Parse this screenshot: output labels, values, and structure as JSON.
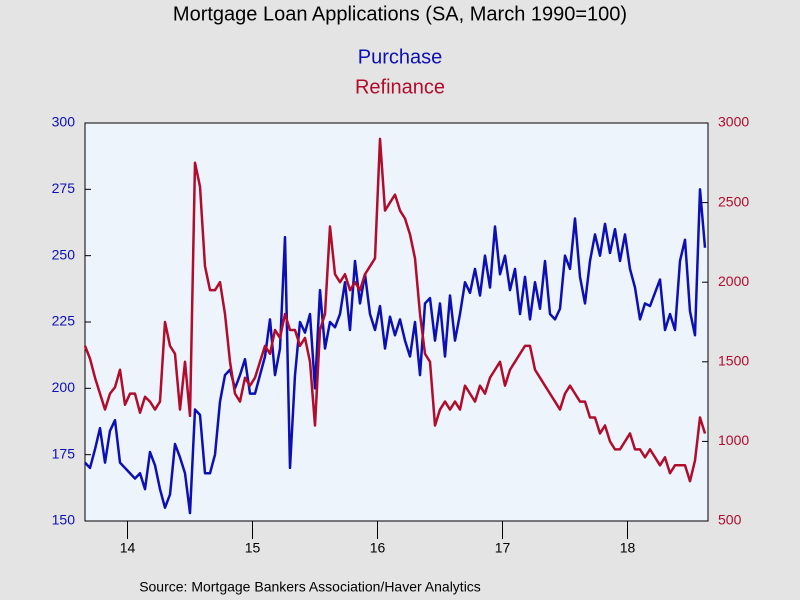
{
  "chart_data": {
    "type": "line",
    "title": "Mortgage Loan Applications (SA, March 1990=100)",
    "source": "Source:  Mortgage Bankers Association/Haver Analytics",
    "background": "#eef4fc",
    "x": [
      2014.16,
      2014.2,
      2014.24,
      2014.28,
      2014.32,
      2014.36,
      2014.4,
      2014.44,
      2014.48,
      2014.52,
      2014.56,
      2014.6,
      2014.64,
      2014.68,
      2014.72,
      2014.76,
      2014.8,
      2014.84,
      2014.88,
      2014.92,
      2014.96,
      2015.0,
      2015.04,
      2015.08,
      2015.12,
      2015.16,
      2015.2,
      2015.24,
      2015.28,
      2015.32,
      2015.36,
      2015.4,
      2015.44,
      2015.48,
      2015.52,
      2015.56,
      2015.6,
      2015.64,
      2015.68,
      2015.72,
      2015.76,
      2015.8,
      2015.84,
      2015.88,
      2015.92,
      2015.96,
      2016.0,
      2016.04,
      2016.08,
      2016.12,
      2016.16,
      2016.2,
      2016.24,
      2016.28,
      2016.32,
      2016.36,
      2016.4,
      2016.44,
      2016.48,
      2016.52,
      2016.56,
      2016.6,
      2016.64,
      2016.68,
      2016.72,
      2016.76,
      2016.8,
      2016.84,
      2016.88,
      2016.92,
      2016.96,
      2017.0,
      2017.04,
      2017.08,
      2017.12,
      2017.16,
      2017.2,
      2017.24,
      2017.28,
      2017.32,
      2017.36,
      2017.4,
      2017.44,
      2017.48,
      2017.52,
      2017.56,
      2017.6,
      2017.64,
      2017.68,
      2017.72,
      2017.76,
      2017.8,
      2017.84,
      2017.88,
      2017.92,
      2017.96,
      2018.0,
      2018.04,
      2018.08,
      2018.12,
      2018.16,
      2018.2,
      2018.24,
      2018.28,
      2018.32,
      2018.36,
      2018.4,
      2018.44,
      2018.48,
      2018.52,
      2018.56,
      2018.6,
      2018.64,
      2018.68,
      2018.72,
      2018.76,
      2018.8,
      2018.84,
      2018.88,
      2018.92,
      2018.96,
      2019.0,
      2019.04,
      2019.08,
      2019.12
    ],
    "series": [
      {
        "name": "Purchase",
        "color": "#0c10b4",
        "axis": "y",
        "values": [
          172,
          170,
          177,
          185,
          172,
          184,
          188,
          172,
          170,
          168,
          166,
          168,
          162,
          176,
          171,
          162,
          155,
          160,
          179,
          174,
          168,
          153,
          192,
          190,
          168,
          168,
          175,
          195,
          205,
          207,
          200,
          205,
          211,
          198,
          198,
          205,
          212,
          226,
          205,
          215,
          257,
          170,
          205,
          225,
          221,
          228,
          200,
          237,
          215,
          225,
          223,
          228,
          240,
          222,
          248,
          232,
          243,
          228,
          222,
          231,
          215,
          227,
          220,
          226,
          218,
          212,
          225,
          205,
          232,
          234,
          218,
          232,
          212,
          235,
          218,
          228,
          240,
          236,
          245,
          235,
          250,
          238,
          261,
          243,
          250,
          237,
          245,
          228,
          242,
          226,
          240,
          230,
          248,
          228,
          226,
          230,
          250,
          245,
          264,
          242,
          232,
          248,
          258,
          250,
          262,
          251,
          260,
          248,
          258,
          245,
          238,
          226,
          232,
          231,
          236,
          241,
          222,
          228,
          222,
          248,
          256,
          229,
          220,
          275,
          253
        ]
      },
      {
        "name": "Refinance",
        "color": "#b00c2c",
        "axis": "y2",
        "values": [
          1600,
          1520,
          1400,
          1300,
          1200,
          1300,
          1340,
          1450,
          1230,
          1300,
          1300,
          1180,
          1280,
          1250,
          1200,
          1250,
          1750,
          1600,
          1550,
          1200,
          1500,
          1160,
          2750,
          2600,
          2100,
          1950,
          1950,
          2000,
          1800,
          1500,
          1300,
          1250,
          1400,
          1350,
          1400,
          1500,
          1600,
          1550,
          1700,
          1650,
          1800,
          1700,
          1700,
          1600,
          1650,
          1500,
          1100,
          1700,
          1800,
          2350,
          2050,
          2000,
          2050,
          1950,
          2000,
          1950,
          2050,
          2100,
          2150,
          2900,
          2450,
          2500,
          2550,
          2450,
          2400,
          2300,
          2150,
          1800,
          1550,
          1500,
          1100,
          1200,
          1250,
          1200,
          1250,
          1200,
          1350,
          1300,
          1250,
          1350,
          1300,
          1400,
          1450,
          1500,
          1350,
          1450,
          1500,
          1550,
          1600,
          1600,
          1450,
          1400,
          1350,
          1300,
          1250,
          1200,
          1300,
          1350,
          1300,
          1250,
          1250,
          1150,
          1150,
          1050,
          1100,
          1000,
          950,
          950,
          1000,
          1050,
          950,
          950,
          900,
          950,
          900,
          850,
          900,
          800,
          850,
          850,
          850,
          750,
          880,
          1150,
          1050
        ]
      }
    ],
    "xlim": [
      2014.16,
      2019.144
    ],
    "xticks": [
      {
        "value": 2014.5,
        "label": "14"
      },
      {
        "value": 2015.5,
        "label": "15"
      },
      {
        "value": 2016.5,
        "label": "16"
      },
      {
        "value": 2017.5,
        "label": "17"
      },
      {
        "value": 2018.5,
        "label": "18"
      }
    ],
    "ylim": [
      150,
      300
    ],
    "yticks": [
      150,
      175,
      200,
      225,
      250,
      275,
      300
    ],
    "y2lim": [
      500,
      3000
    ],
    "y2ticks": [
      500,
      1000,
      1500,
      2000,
      2500,
      3000
    ]
  }
}
